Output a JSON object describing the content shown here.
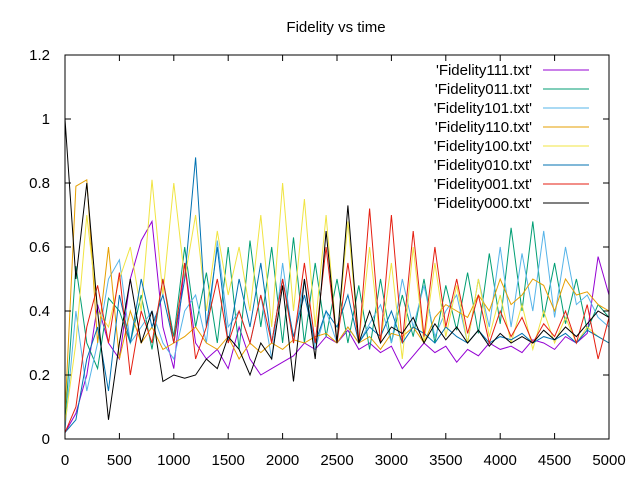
{
  "chart_data": {
    "type": "line",
    "title": "Fidelity vs time",
    "xlabel": "",
    "ylabel": "",
    "xlim": [
      0,
      5000
    ],
    "ylim": [
      0,
      1.2
    ],
    "xticks": [
      0,
      500,
      1000,
      1500,
      2000,
      2500,
      3000,
      3500,
      4000,
      4500,
      5000
    ],
    "yticks": [
      0,
      0.2,
      0.4,
      0.6,
      0.8,
      1,
      1.2
    ],
    "xtick_labels": [
      "0",
      "500",
      "1000",
      "1500",
      "2000",
      "2500",
      "3000",
      "3500",
      "4000",
      "4500",
      "5000"
    ],
    "ytick_labels": [
      "0",
      "0.2",
      "0.4",
      "0.6",
      "0.8",
      "1",
      "1.2"
    ],
    "grid": false,
    "legend_position": "top-right",
    "series": [
      {
        "name": "'Fidelity111.txt'",
        "color": "#9400d3",
        "x": [
          0,
          100,
          200,
          300,
          400,
          500,
          600,
          700,
          800,
          900,
          1000,
          1100,
          1200,
          1300,
          1400,
          1500,
          1600,
          1700,
          1800,
          1900,
          2000,
          2100,
          2200,
          2300,
          2400,
          2500,
          2600,
          2700,
          2800,
          2900,
          3000,
          3100,
          3200,
          3300,
          3400,
          3500,
          3600,
          3700,
          3800,
          3900,
          4000,
          4100,
          4200,
          4300,
          4400,
          4500,
          4600,
          4700,
          4800,
          4900,
          5000
        ],
        "y": [
          0.02,
          0.08,
          0.2,
          0.42,
          0.3,
          0.25,
          0.5,
          0.62,
          0.68,
          0.35,
          0.22,
          0.55,
          0.3,
          0.25,
          0.28,
          0.22,
          0.35,
          0.25,
          0.2,
          0.22,
          0.24,
          0.26,
          0.3,
          0.28,
          0.32,
          0.3,
          0.34,
          0.28,
          0.3,
          0.27,
          0.29,
          0.22,
          0.26,
          0.3,
          0.27,
          0.29,
          0.24,
          0.28,
          0.26,
          0.3,
          0.28,
          0.29,
          0.27,
          0.31,
          0.3,
          0.28,
          0.32,
          0.3,
          0.33,
          0.57,
          0.45
        ]
      },
      {
        "name": "'Fidelity011.txt'",
        "color": "#009e73",
        "x": [
          0,
          100,
          200,
          300,
          400,
          500,
          600,
          700,
          800,
          900,
          1000,
          1100,
          1200,
          1300,
          1400,
          1500,
          1600,
          1700,
          1800,
          1900,
          2000,
          2100,
          2200,
          2300,
          2400,
          2500,
          2600,
          2700,
          2800,
          2900,
          3000,
          3100,
          3200,
          3300,
          3400,
          3500,
          3600,
          3700,
          3800,
          3900,
          4000,
          4100,
          4200,
          4300,
          4400,
          4500,
          4600,
          4700,
          4800,
          4900,
          5000
        ],
        "y": [
          0.05,
          0.54,
          0.3,
          0.22,
          0.44,
          0.4,
          0.3,
          0.45,
          0.28,
          0.5,
          0.32,
          0.6,
          0.35,
          0.52,
          0.3,
          0.6,
          0.28,
          0.62,
          0.35,
          0.6,
          0.3,
          0.63,
          0.3,
          0.55,
          0.32,
          0.5,
          0.3,
          0.48,
          0.28,
          0.5,
          0.3,
          0.45,
          0.32,
          0.5,
          0.3,
          0.48,
          0.34,
          0.52,
          0.33,
          0.58,
          0.36,
          0.66,
          0.4,
          0.68,
          0.38,
          0.55,
          0.36,
          0.5,
          0.34,
          0.42,
          0.38
        ]
      },
      {
        "name": "'Fidelity101.txt'",
        "color": "#56b4e9",
        "x": [
          0,
          100,
          200,
          300,
          400,
          500,
          600,
          700,
          800,
          900,
          1000,
          1100,
          1200,
          1300,
          1400,
          1500,
          1600,
          1700,
          1800,
          1900,
          2000,
          2100,
          2200,
          2300,
          2400,
          2500,
          2600,
          2700,
          2800,
          2900,
          3000,
          3100,
          3200,
          3300,
          3400,
          3500,
          3600,
          3700,
          3800,
          3900,
          4000,
          4100,
          4200,
          4300,
          4400,
          4500,
          4600,
          4700,
          4800,
          4900,
          5000
        ],
        "y": [
          0.03,
          0.4,
          0.15,
          0.3,
          0.5,
          0.56,
          0.3,
          0.35,
          0.4,
          0.3,
          0.25,
          0.4,
          0.45,
          0.3,
          0.62,
          0.35,
          0.4,
          0.3,
          0.45,
          0.25,
          0.55,
          0.3,
          0.5,
          0.28,
          0.4,
          0.3,
          0.35,
          0.3,
          0.36,
          0.42,
          0.3,
          0.5,
          0.35,
          0.48,
          0.32,
          0.4,
          0.45,
          0.3,
          0.5,
          0.35,
          0.6,
          0.35,
          0.58,
          0.4,
          0.65,
          0.38,
          0.6,
          0.42,
          0.45,
          0.38,
          0.35
        ]
      },
      {
        "name": "'Fidelity110.txt'",
        "color": "#e69f00",
        "x": [
          0,
          100,
          200,
          300,
          400,
          500,
          600,
          700,
          800,
          900,
          1000,
          1100,
          1200,
          1300,
          1400,
          1500,
          1600,
          1700,
          1800,
          1900,
          2000,
          2100,
          2200,
          2300,
          2400,
          2500,
          2600,
          2700,
          2800,
          2900,
          3000,
          3100,
          3200,
          3300,
          3400,
          3500,
          3600,
          3700,
          3800,
          3900,
          4000,
          4100,
          4200,
          4300,
          4400,
          4500,
          4600,
          4700,
          4800,
          4900,
          5000
        ],
        "y": [
          0.08,
          0.79,
          0.81,
          0.3,
          0.6,
          0.25,
          0.4,
          0.3,
          0.35,
          0.28,
          0.3,
          0.32,
          0.35,
          0.3,
          0.28,
          0.32,
          0.25,
          0.3,
          0.27,
          0.3,
          0.28,
          0.31,
          0.3,
          0.32,
          0.33,
          0.3,
          0.35,
          0.3,
          0.32,
          0.28,
          0.33,
          0.32,
          0.35,
          0.3,
          0.38,
          0.42,
          0.4,
          0.38,
          0.45,
          0.4,
          0.5,
          0.42,
          0.45,
          0.5,
          0.48,
          0.4,
          0.5,
          0.45,
          0.46,
          0.42,
          0.4
        ]
      },
      {
        "name": "'Fidelity100.txt'",
        "color": "#f0e442",
        "x": [
          0,
          100,
          200,
          300,
          400,
          500,
          600,
          700,
          800,
          900,
          1000,
          1100,
          1200,
          1300,
          1400,
          1500,
          1600,
          1700,
          1800,
          1900,
          2000,
          2100,
          2200,
          2300,
          2400,
          2500,
          2600,
          2700,
          2800,
          2900,
          3000,
          3100,
          3200,
          3300,
          3400,
          3500,
          3600,
          3700,
          3800,
          3900,
          4000,
          4100,
          4200,
          4300,
          4400,
          4500,
          4600,
          4700,
          4800,
          4900,
          5000
        ],
        "y": [
          0.05,
          0.3,
          0.7,
          0.4,
          0.35,
          0.5,
          0.6,
          0.4,
          0.81,
          0.45,
          0.8,
          0.5,
          0.7,
          0.4,
          0.65,
          0.45,
          0.6,
          0.4,
          0.7,
          0.35,
          0.8,
          0.4,
          0.75,
          0.35,
          0.7,
          0.3,
          0.68,
          0.3,
          0.6,
          0.3,
          0.55,
          0.25,
          0.6,
          0.3,
          0.55,
          0.32,
          0.48,
          0.3,
          0.5,
          0.32,
          0.45,
          0.3,
          0.42,
          0.28,
          0.4,
          0.3,
          0.38,
          0.3,
          0.35,
          0.32,
          0.3
        ]
      },
      {
        "name": "'Fidelity010.txt'",
        "color": "#0072b2",
        "x": [
          0,
          100,
          200,
          300,
          400,
          500,
          600,
          700,
          800,
          900,
          1000,
          1100,
          1200,
          1300,
          1400,
          1500,
          1600,
          1700,
          1800,
          1900,
          2000,
          2100,
          2200,
          2300,
          2400,
          2500,
          2600,
          2700,
          2800,
          2900,
          3000,
          3100,
          3200,
          3300,
          3400,
          3500,
          3600,
          3700,
          3800,
          3900,
          4000,
          4100,
          4200,
          4300,
          4400,
          4500,
          4600,
          4700,
          4800,
          4900,
          5000
        ],
        "y": [
          0.02,
          0.06,
          0.25,
          0.35,
          0.15,
          0.45,
          0.3,
          0.5,
          0.35,
          0.45,
          0.3,
          0.5,
          0.88,
          0.35,
          0.6,
          0.3,
          0.5,
          0.35,
          0.55,
          0.3,
          0.5,
          0.32,
          0.45,
          0.3,
          0.4,
          0.35,
          0.45,
          0.3,
          0.35,
          0.32,
          0.4,
          0.3,
          0.35,
          0.33,
          0.3,
          0.35,
          0.32,
          0.3,
          0.34,
          0.3,
          0.32,
          0.31,
          0.33,
          0.3,
          0.32,
          0.31,
          0.33,
          0.3,
          0.34,
          0.32,
          0.3
        ]
      },
      {
        "name": "'Fidelity001.txt'",
        "color": "#e51e10",
        "x": [
          0,
          100,
          200,
          300,
          400,
          500,
          600,
          700,
          800,
          900,
          1000,
          1100,
          1200,
          1300,
          1400,
          1500,
          1600,
          1700,
          1800,
          1900,
          2000,
          2100,
          2200,
          2300,
          2400,
          2500,
          2600,
          2700,
          2800,
          2900,
          3000,
          3100,
          3200,
          3300,
          3400,
          3500,
          3600,
          3700,
          3800,
          3900,
          4000,
          4100,
          4200,
          4300,
          4400,
          4500,
          4600,
          4700,
          4800,
          4900,
          5000
        ],
        "y": [
          0.02,
          0.1,
          0.35,
          0.48,
          0.3,
          0.52,
          0.2,
          0.4,
          0.3,
          0.5,
          0.3,
          0.55,
          0.25,
          0.35,
          0.5,
          0.3,
          0.4,
          0.3,
          0.45,
          0.3,
          0.5,
          0.3,
          0.55,
          0.3,
          0.6,
          0.3,
          0.55,
          0.3,
          0.72,
          0.3,
          0.7,
          0.3,
          0.65,
          0.32,
          0.6,
          0.35,
          0.5,
          0.33,
          0.45,
          0.3,
          0.4,
          0.32,
          0.38,
          0.3,
          0.36,
          0.32,
          0.4,
          0.3,
          0.42,
          0.25,
          0.38
        ]
      },
      {
        "name": "'Fidelity000.txt'",
        "color": "#000000",
        "x": [
          0,
          100,
          200,
          300,
          400,
          500,
          600,
          700,
          800,
          900,
          1000,
          1100,
          1200,
          1300,
          1400,
          1500,
          1600,
          1700,
          1800,
          1900,
          2000,
          2100,
          2200,
          2300,
          2400,
          2500,
          2600,
          2700,
          2800,
          2900,
          3000,
          3100,
          3200,
          3300,
          3400,
          3500,
          3600,
          3700,
          3800,
          3900,
          4000,
          4100,
          4200,
          4300,
          4400,
          4500,
          4600,
          4700,
          4800,
          4900,
          5000
        ],
        "y": [
          1.0,
          0.5,
          0.8,
          0.4,
          0.06,
          0.3,
          0.5,
          0.3,
          0.4,
          0.18,
          0.2,
          0.19,
          0.2,
          0.25,
          0.22,
          0.32,
          0.28,
          0.2,
          0.3,
          0.25,
          0.48,
          0.18,
          0.5,
          0.25,
          0.65,
          0.3,
          0.73,
          0.3,
          0.4,
          0.3,
          0.35,
          0.33,
          0.38,
          0.3,
          0.36,
          0.31,
          0.35,
          0.3,
          0.34,
          0.29,
          0.33,
          0.3,
          0.32,
          0.3,
          0.34,
          0.31,
          0.35,
          0.32,
          0.36,
          0.4,
          0.38
        ]
      }
    ]
  }
}
